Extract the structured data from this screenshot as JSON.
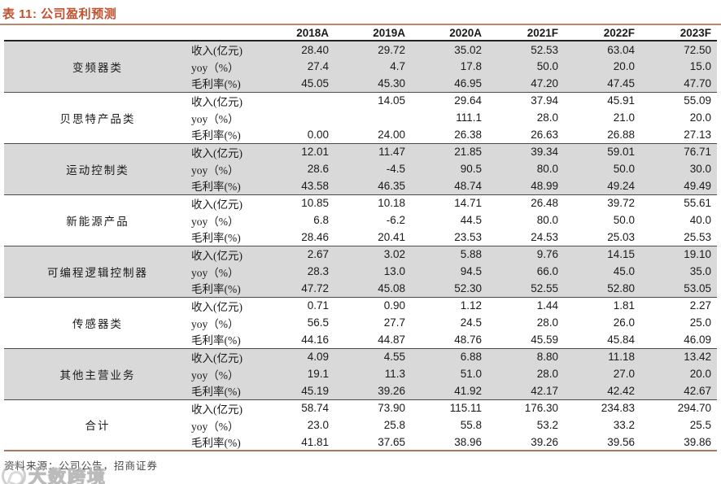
{
  "title": "表 11: 公司盈利预测",
  "footer": {
    "source": "资料来源：公司公告，招商证券"
  },
  "watermark": {
    "text": "大数跨境"
  },
  "colors": {
    "accent": "#C0512F",
    "band": "#D9D9D9",
    "title_rule": "#BC8668",
    "header_rule": "#262220",
    "group_separator": "#4A4A4A",
    "bottom_rule": "#AE7557"
  },
  "table": {
    "columns": [
      "2018A",
      "2019A",
      "2020A",
      "2021F",
      "2022F",
      "2023F"
    ],
    "metric_labels": [
      "收入(亿元)",
      "yoy（%）",
      "毛利率(%)"
    ],
    "groups": [
      {
        "name": "变频器类",
        "shaded": true,
        "rows": [
          [
            "28.40",
            "29.72",
            "35.02",
            "52.53",
            "63.04",
            "72.50"
          ],
          [
            "27.4",
            "4.7",
            "17.8",
            "50.0",
            "20.0",
            "15.0"
          ],
          [
            "45.05",
            "45.30",
            "46.95",
            "47.20",
            "47.45",
            "47.70"
          ]
        ]
      },
      {
        "name": "贝思特产品类",
        "shaded": false,
        "rows": [
          [
            "",
            "14.05",
            "29.64",
            "37.94",
            "45.91",
            "55.09"
          ],
          [
            "",
            "",
            "111.1",
            "28.0",
            "21.0",
            "20.0"
          ],
          [
            "0.00",
            "24.00",
            "26.38",
            "26.63",
            "26.88",
            "27.13"
          ]
        ]
      },
      {
        "name": "运动控制类",
        "shaded": true,
        "rows": [
          [
            "12.01",
            "11.47",
            "21.85",
            "39.34",
            "59.01",
            "76.71"
          ],
          [
            "28.6",
            "-4.5",
            "90.5",
            "80.0",
            "50.0",
            "30.0"
          ],
          [
            "43.58",
            "46.35",
            "48.74",
            "48.99",
            "49.24",
            "49.49"
          ]
        ]
      },
      {
        "name": "新能源产品",
        "shaded": false,
        "rows": [
          [
            "10.85",
            "10.18",
            "14.71",
            "26.48",
            "39.72",
            "55.61"
          ],
          [
            "6.8",
            "-6.2",
            "44.5",
            "80.0",
            "50.0",
            "40.0"
          ],
          [
            "28.46",
            "20.41",
            "23.53",
            "24.53",
            "25.03",
            "25.53"
          ]
        ]
      },
      {
        "name": "可编程逻辑控制器",
        "shaded": true,
        "rows": [
          [
            "2.67",
            "3.02",
            "5.88",
            "9.76",
            "14.15",
            "19.10"
          ],
          [
            "28.3",
            "13.0",
            "94.5",
            "66.0",
            "45.0",
            "35.0"
          ],
          [
            "47.72",
            "45.08",
            "52.30",
            "52.55",
            "52.80",
            "53.05"
          ]
        ]
      },
      {
        "name": "传感器类",
        "shaded": false,
        "rows": [
          [
            "0.71",
            "0.90",
            "1.12",
            "1.44",
            "1.81",
            "2.27"
          ],
          [
            "56.5",
            "27.7",
            "24.5",
            "28.0",
            "26.0",
            "25.0"
          ],
          [
            "44.16",
            "44.87",
            "48.76",
            "45.59",
            "45.84",
            "46.09"
          ]
        ]
      },
      {
        "name": "其他主营业务",
        "shaded": true,
        "rows": [
          [
            "4.09",
            "4.55",
            "6.88",
            "8.80",
            "11.18",
            "13.42"
          ],
          [
            "19.1",
            "11.3",
            "51.0",
            "28.0",
            "27.0",
            "20.0"
          ],
          [
            "45.19",
            "39.26",
            "41.92",
            "42.17",
            "42.42",
            "42.67"
          ]
        ]
      },
      {
        "name": "合计",
        "shaded": false,
        "rows": [
          [
            "58.74",
            "73.90",
            "115.11",
            "176.30",
            "234.83",
            "294.70"
          ],
          [
            "23.0",
            "25.8",
            "55.8",
            "53.2",
            "33.2",
            "25.5"
          ],
          [
            "41.81",
            "37.65",
            "38.96",
            "39.26",
            "39.56",
            "39.86"
          ]
        ]
      }
    ]
  }
}
